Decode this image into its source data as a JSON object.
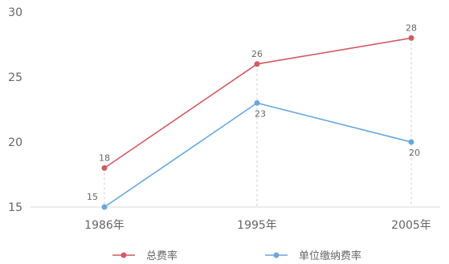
{
  "chart_data": {
    "type": "line",
    "categories": [
      "1986年",
      "1995年",
      "2005年"
    ],
    "y_ticks": [
      15,
      20,
      25,
      30
    ],
    "ylim": [
      15,
      30
    ],
    "grid": false,
    "legend_position": "bottom",
    "series": [
      {
        "name": "总费率",
        "values": [
          18,
          26,
          28
        ],
        "color": "#d05a64"
      },
      {
        "name": "单位缴纳费率",
        "values": [
          15,
          23,
          20
        ],
        "color": "#6aa8d9"
      }
    ],
    "baseline_color": "#d9d9d9",
    "guide_color": "#cfcfcf"
  }
}
